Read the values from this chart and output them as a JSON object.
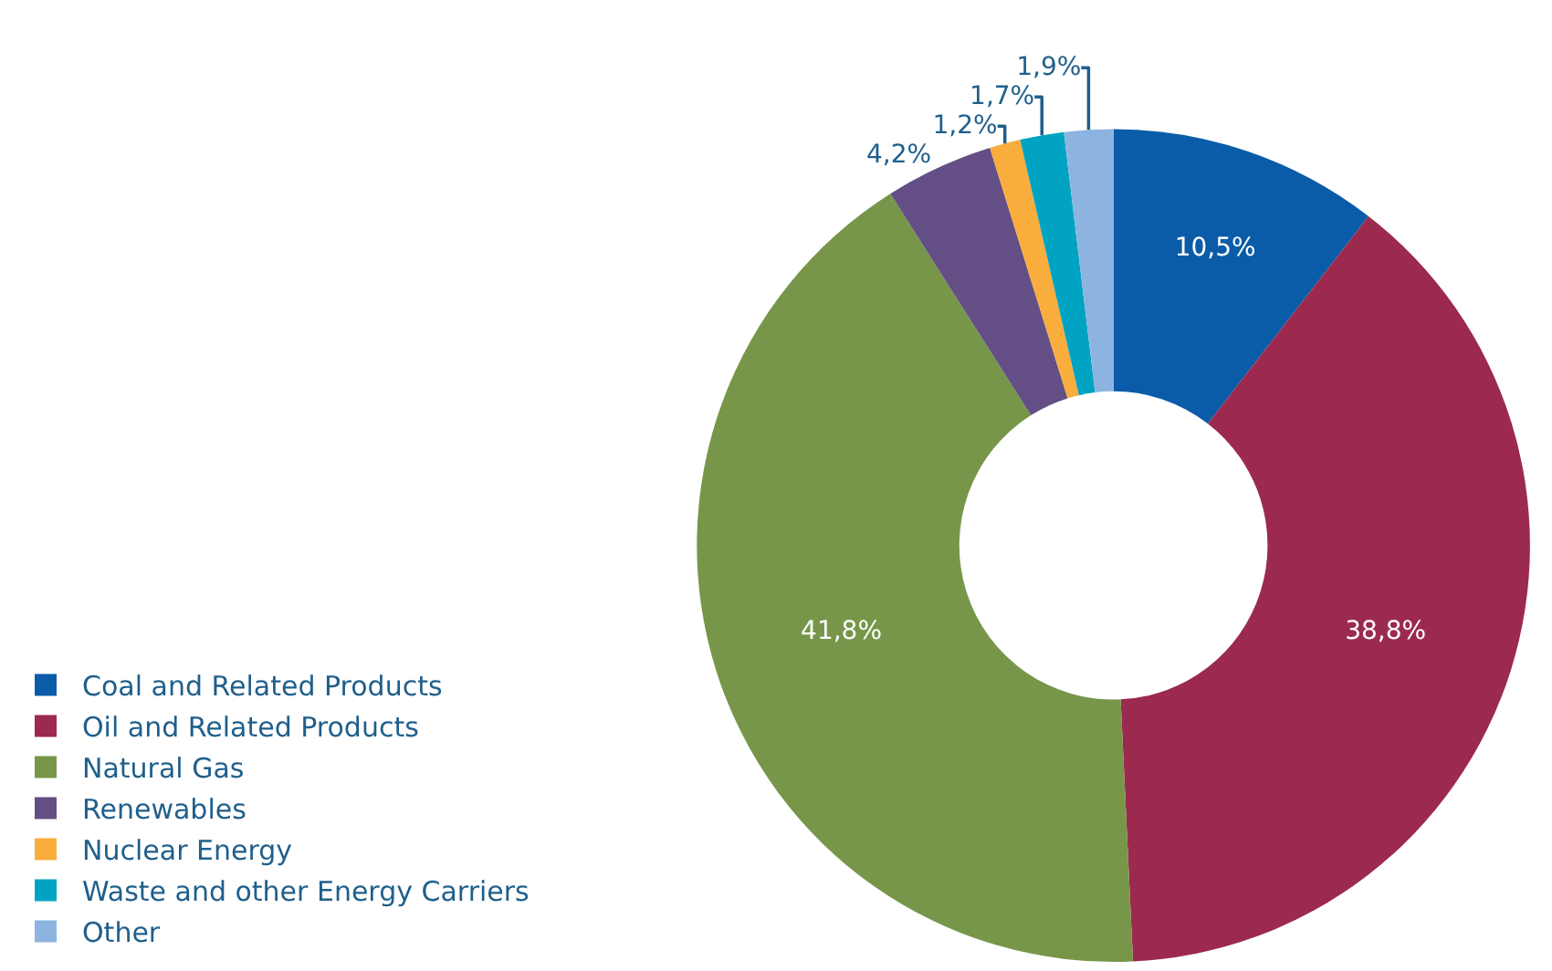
{
  "chart_data": {
    "type": "donut",
    "categories": [
      "Coal and Related Products",
      "Oil and Related Products",
      "Natural Gas",
      "Renewables",
      "Nuclear Energy",
      "Waste and other Energy Carriers",
      "Other"
    ],
    "values": [
      10.5,
      38.8,
      41.8,
      4.2,
      1.2,
      1.7,
      1.9
    ],
    "value_labels": [
      "10,5%",
      "38,8%",
      "41,8%",
      "4,2%",
      "1,2%",
      "1,7%",
      "1,9%"
    ],
    "colors": [
      "#0a5ca8",
      "#9b2a4e",
      "#77964a",
      "#634e85",
      "#f9ad3c",
      "#00a3c1",
      "#8db4e0"
    ],
    "legend": "bottom left"
  }
}
